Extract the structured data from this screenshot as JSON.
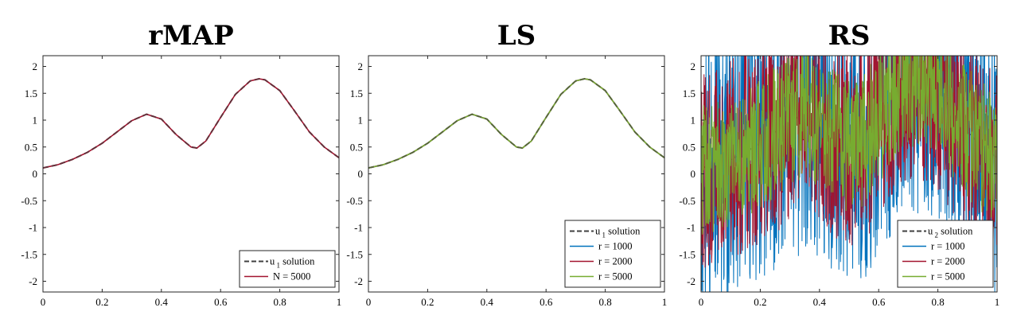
{
  "chart_data": [
    {
      "type": "line",
      "title": "rMAP",
      "xlim": [
        0,
        1
      ],
      "ylim": [
        -2.2,
        2.2
      ],
      "xticks": [
        "0",
        "0.2",
        "0.4",
        "0.6",
        "0.8",
        "1"
      ],
      "yticks": [
        "-2",
        "-1.5",
        "-1",
        "-0.5",
        "0",
        "0.5",
        "1",
        "1.5",
        "2"
      ],
      "grid": false,
      "legend_position": "bottom-right",
      "series": [
        {
          "name": "u_1 solution",
          "legend_label": "u",
          "legend_sub": "1",
          "legend_suffix": "solution",
          "style": "dashed",
          "color": "#404040",
          "x": [
            0,
            0.05,
            0.1,
            0.15,
            0.2,
            0.25,
            0.3,
            0.35,
            0.4,
            0.45,
            0.5,
            0.52,
            0.55,
            0.6,
            0.65,
            0.7,
            0.73,
            0.75,
            0.8,
            0.85,
            0.9,
            0.95,
            1.0
          ],
          "y": [
            0.11,
            0.17,
            0.27,
            0.4,
            0.57,
            0.78,
            0.99,
            1.11,
            1.02,
            0.73,
            0.5,
            0.48,
            0.61,
            1.05,
            1.48,
            1.73,
            1.77,
            1.75,
            1.55,
            1.17,
            0.78,
            0.5,
            0.3
          ]
        },
        {
          "name": "N = 5000",
          "style": "solid",
          "color": "#a2142f",
          "x": [
            0,
            0.05,
            0.1,
            0.15,
            0.2,
            0.25,
            0.3,
            0.35,
            0.4,
            0.45,
            0.5,
            0.52,
            0.55,
            0.6,
            0.65,
            0.7,
            0.73,
            0.75,
            0.8,
            0.85,
            0.9,
            0.95,
            1.0
          ],
          "y": [
            0.11,
            0.17,
            0.27,
            0.4,
            0.57,
            0.78,
            0.99,
            1.11,
            1.02,
            0.73,
            0.5,
            0.48,
            0.61,
            1.05,
            1.48,
            1.73,
            1.77,
            1.75,
            1.55,
            1.17,
            0.78,
            0.5,
            0.3
          ]
        }
      ]
    },
    {
      "type": "line",
      "title": "LS",
      "xlim": [
        0,
        1
      ],
      "ylim": [
        -2.2,
        2.2
      ],
      "xticks": [
        "0",
        "0.2",
        "0.4",
        "0.6",
        "0.8",
        "1"
      ],
      "yticks": [
        "-2",
        "-1.5",
        "-1",
        "-0.5",
        "0",
        "0.5",
        "1",
        "1.5",
        "2"
      ],
      "grid": false,
      "legend_position": "bottom-right",
      "series": [
        {
          "name": "u_1 solution",
          "legend_label": "u",
          "legend_sub": "1",
          "legend_suffix": "solution",
          "style": "dashed",
          "color": "#404040",
          "x": [
            0,
            0.05,
            0.1,
            0.15,
            0.2,
            0.25,
            0.3,
            0.35,
            0.4,
            0.45,
            0.5,
            0.52,
            0.55,
            0.6,
            0.65,
            0.7,
            0.73,
            0.75,
            0.8,
            0.85,
            0.9,
            0.95,
            1.0
          ],
          "y": [
            0.11,
            0.17,
            0.27,
            0.4,
            0.57,
            0.78,
            0.99,
            1.11,
            1.02,
            0.73,
            0.5,
            0.48,
            0.61,
            1.05,
            1.48,
            1.73,
            1.77,
            1.75,
            1.55,
            1.17,
            0.78,
            0.5,
            0.3
          ]
        },
        {
          "name": "r = 1000",
          "style": "solid",
          "color": "#0072bd",
          "x": [
            0,
            0.05,
            0.1,
            0.15,
            0.2,
            0.25,
            0.3,
            0.35,
            0.4,
            0.45,
            0.5,
            0.52,
            0.55,
            0.6,
            0.65,
            0.7,
            0.73,
            0.75,
            0.8,
            0.85,
            0.9,
            0.95,
            1.0
          ],
          "y": [
            0.11,
            0.17,
            0.27,
            0.4,
            0.57,
            0.78,
            0.99,
            1.11,
            1.02,
            0.73,
            0.5,
            0.48,
            0.61,
            1.05,
            1.48,
            1.73,
            1.77,
            1.75,
            1.55,
            1.17,
            0.78,
            0.5,
            0.3
          ]
        },
        {
          "name": "r = 2000",
          "style": "solid",
          "color": "#a2142f",
          "x": [
            0,
            0.05,
            0.1,
            0.15,
            0.2,
            0.25,
            0.3,
            0.35,
            0.4,
            0.45,
            0.5,
            0.52,
            0.55,
            0.6,
            0.65,
            0.7,
            0.73,
            0.75,
            0.8,
            0.85,
            0.9,
            0.95,
            1.0
          ],
          "y": [
            0.11,
            0.17,
            0.27,
            0.4,
            0.57,
            0.78,
            0.99,
            1.11,
            1.02,
            0.73,
            0.5,
            0.48,
            0.61,
            1.05,
            1.48,
            1.73,
            1.77,
            1.75,
            1.55,
            1.17,
            0.78,
            0.5,
            0.3
          ]
        },
        {
          "name": "r = 5000",
          "style": "solid",
          "color": "#77ac30",
          "x": [
            0,
            0.05,
            0.1,
            0.15,
            0.2,
            0.25,
            0.3,
            0.35,
            0.4,
            0.45,
            0.5,
            0.52,
            0.55,
            0.6,
            0.65,
            0.7,
            0.73,
            0.75,
            0.8,
            0.85,
            0.9,
            0.95,
            1.0
          ],
          "y": [
            0.11,
            0.17,
            0.27,
            0.4,
            0.57,
            0.78,
            0.99,
            1.11,
            1.02,
            0.73,
            0.5,
            0.48,
            0.61,
            1.05,
            1.48,
            1.73,
            1.77,
            1.75,
            1.55,
            1.17,
            0.78,
            0.5,
            0.3
          ]
        }
      ]
    },
    {
      "type": "line",
      "title": "RS",
      "xlim": [
        0,
        1
      ],
      "ylim": [
        -2.2,
        2.2
      ],
      "xticks": [
        "0",
        "0.2",
        "0.4",
        "0.6",
        "0.8",
        "1"
      ],
      "yticks": [
        "-2",
        "-1.5",
        "-1",
        "-0.5",
        "0",
        "0.5",
        "1",
        "1.5",
        "2"
      ],
      "grid": false,
      "legend_position": "bottom-right",
      "series": [
        {
          "name": "u_2 solution",
          "legend_label": "u",
          "legend_sub": "2",
          "legend_suffix": "solution",
          "style": "dashed",
          "color": "#404040",
          "x": [
            0,
            0.05,
            0.1,
            0.15,
            0.2,
            0.25,
            0.3,
            0.35,
            0.4,
            0.45,
            0.5,
            0.52,
            0.55,
            0.6,
            0.65,
            0.7,
            0.73,
            0.75,
            0.8,
            0.85,
            0.9,
            0.95,
            1.0
          ],
          "y": [
            0.11,
            0.17,
            0.27,
            0.4,
            0.57,
            0.78,
            0.99,
            1.11,
            1.02,
            0.73,
            0.5,
            0.48,
            0.61,
            1.05,
            1.48,
            1.73,
            1.77,
            1.75,
            1.55,
            1.17,
            0.78,
            0.5,
            0.3
          ]
        },
        {
          "name": "r = 1000",
          "style": "noisy",
          "color": "#0072bd",
          "noise_amplitude": 2.6,
          "x": [
            0,
            0.05,
            0.1,
            0.15,
            0.2,
            0.25,
            0.3,
            0.35,
            0.4,
            0.45,
            0.5,
            0.52,
            0.55,
            0.6,
            0.65,
            0.7,
            0.73,
            0.75,
            0.8,
            0.85,
            0.9,
            0.95,
            1.0
          ],
          "y": [
            0.11,
            0.17,
            0.27,
            0.4,
            0.57,
            0.78,
            0.99,
            1.11,
            1.02,
            0.73,
            0.5,
            0.48,
            0.61,
            1.05,
            1.48,
            1.73,
            1.77,
            1.75,
            1.55,
            1.17,
            0.78,
            0.5,
            0.3
          ]
        },
        {
          "name": "r = 2000",
          "style": "noisy",
          "color": "#a2142f",
          "noise_amplitude": 1.9,
          "x": [
            0,
            0.05,
            0.1,
            0.15,
            0.2,
            0.25,
            0.3,
            0.35,
            0.4,
            0.45,
            0.5,
            0.52,
            0.55,
            0.6,
            0.65,
            0.7,
            0.73,
            0.75,
            0.8,
            0.85,
            0.9,
            0.95,
            1.0
          ],
          "y": [
            0.11,
            0.17,
            0.27,
            0.4,
            0.57,
            0.78,
            0.99,
            1.11,
            1.02,
            0.73,
            0.5,
            0.48,
            0.61,
            1.05,
            1.48,
            1.73,
            1.77,
            1.75,
            1.55,
            1.17,
            0.78,
            0.5,
            0.3
          ]
        },
        {
          "name": "r = 5000",
          "style": "noisy",
          "color": "#77ac30",
          "noise_amplitude": 1.25,
          "x": [
            0,
            0.05,
            0.1,
            0.15,
            0.2,
            0.25,
            0.3,
            0.35,
            0.4,
            0.45,
            0.5,
            0.52,
            0.55,
            0.6,
            0.65,
            0.7,
            0.73,
            0.75,
            0.8,
            0.85,
            0.9,
            0.95,
            1.0
          ],
          "y": [
            0.11,
            0.17,
            0.27,
            0.4,
            0.57,
            0.78,
            0.99,
            1.11,
            1.02,
            0.73,
            0.5,
            0.48,
            0.61,
            1.05,
            1.48,
            1.73,
            1.77,
            1.75,
            1.55,
            1.17,
            0.78,
            0.5,
            0.3
          ]
        }
      ]
    }
  ]
}
